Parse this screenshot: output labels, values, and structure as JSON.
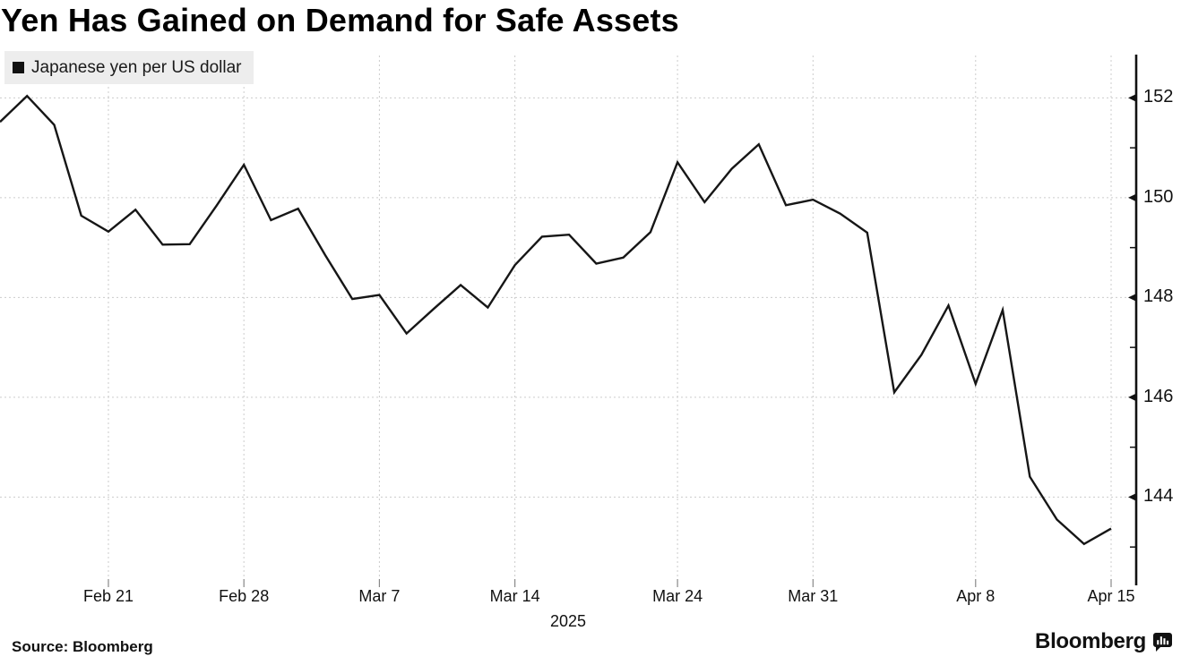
{
  "title": "Yen Has Gained on Demand for Safe Assets",
  "legend": {
    "label": "Japanese yen per US dollar",
    "swatch_color": "#111111"
  },
  "source": "Source: Bloomberg",
  "logo": {
    "text": "Bloomberg"
  },
  "colors": {
    "line": "#161616",
    "grid": "#cccccc",
    "axis": "#111111",
    "tick": "#888888",
    "label": "#111111",
    "legend_bg": "#ededed",
    "background": "#ffffff"
  },
  "chart_data": {
    "type": "line",
    "title": "Yen Has Gained on Demand for Safe Assets",
    "series_name": "Japanese yen per US dollar",
    "x": [
      "Feb 17",
      "Feb 18",
      "Feb 19",
      "Feb 20",
      "Feb 21",
      "Feb 24",
      "Feb 25",
      "Feb 26",
      "Feb 27",
      "Feb 28",
      "Mar 3",
      "Mar 4",
      "Mar 5",
      "Mar 6",
      "Mar 7",
      "Mar 10",
      "Mar 11",
      "Mar 12",
      "Mar 13",
      "Mar 14",
      "Mar 17",
      "Mar 18",
      "Mar 19",
      "Mar 20",
      "Mar 21",
      "Mar 24",
      "Mar 25",
      "Mar 26",
      "Mar 27",
      "Mar 28",
      "Mar 31",
      "Apr 1",
      "Apr 2",
      "Apr 3",
      "Apr 4",
      "Apr 7",
      "Apr 8",
      "Apr 9",
      "Apr 10",
      "Apr 11",
      "Apr 14",
      "Apr 15"
    ],
    "values": [
      151.52,
      152.04,
      151.46,
      149.64,
      149.32,
      149.76,
      149.06,
      149.07,
      149.85,
      150.66,
      149.55,
      149.78,
      148.85,
      147.97,
      148.05,
      147.28,
      147.77,
      148.25,
      147.8,
      148.65,
      149.22,
      149.26,
      148.68,
      148.8,
      149.31,
      150.71,
      149.91,
      150.58,
      151.07,
      149.85,
      149.96,
      149.68,
      149.3,
      146.1,
      146.85,
      147.84,
      146.27,
      147.75,
      144.41,
      143.55,
      143.06,
      143.37
    ],
    "x_tick_labels": [
      "Feb 21",
      "Feb 28",
      "Mar 7",
      "Mar 14",
      "Mar 24",
      "Mar 31",
      "Apr 8",
      "Apr 15"
    ],
    "x_tick_indices": [
      4,
      9,
      14,
      19,
      25,
      30,
      36,
      41
    ],
    "x_axis_year": "2025",
    "y_ticks": [
      144,
      146,
      148,
      150,
      152
    ],
    "y_minor_ticks": [
      143,
      145,
      147,
      149,
      151
    ],
    "ylim": [
      142.25,
      152.85
    ],
    "grid": "dashed",
    "y_axis_side": "right",
    "legend_position": "top-left"
  }
}
